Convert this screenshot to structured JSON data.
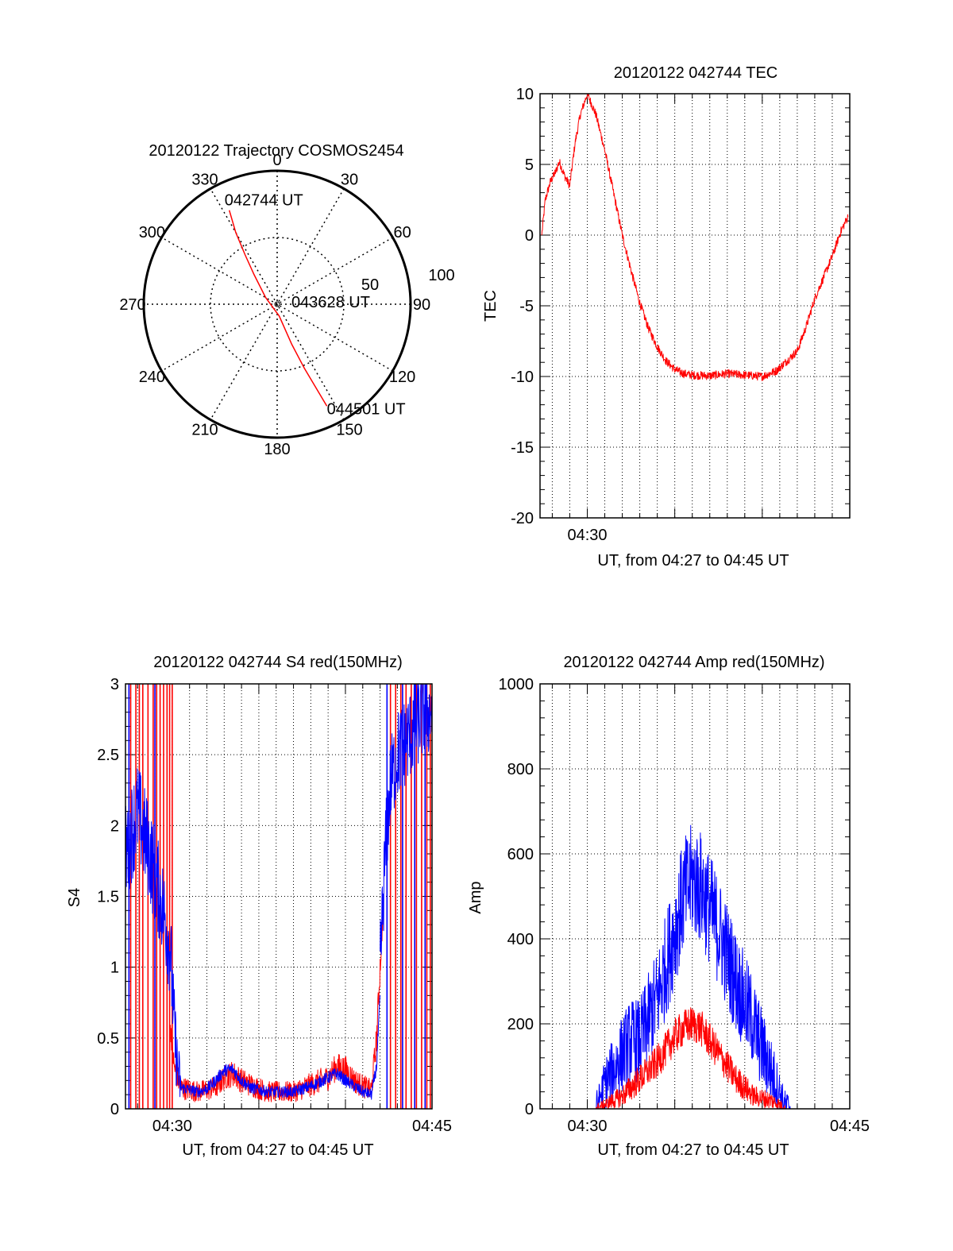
{
  "colors": {
    "red": "#ff0000",
    "blue": "#0000ff",
    "axis": "#000000",
    "grid": "#000000"
  },
  "chart_data": [
    {
      "id": "polar",
      "type": "polar-trajectory",
      "title": "20120122 Trajectory COSMOS2454",
      "azimuth_labels": [
        "0",
        "30",
        "60",
        "90",
        "120",
        "150",
        "180",
        "210",
        "240",
        "270",
        "300",
        "330"
      ],
      "radial_labels": [
        "50",
        "100"
      ],
      "track": {
        "color": "red",
        "points": [
          {
            "az": 333,
            "r": 79
          },
          {
            "az": 330,
            "r": 62
          },
          {
            "az": 327,
            "r": 44
          },
          {
            "az": 322,
            "r": 28
          },
          {
            "az": 300,
            "r": 10
          },
          {
            "az": 170,
            "r": 9
          },
          {
            "az": 160,
            "r": 32
          },
          {
            "az": 157,
            "r": 52
          },
          {
            "az": 155,
            "r": 70
          },
          {
            "az": 154,
            "r": 85
          }
        ],
        "labels": [
          {
            "text": "042744 UT",
            "az": 333,
            "r": 79
          },
          {
            "text": "043628 UT",
            "az": 0,
            "r": 0
          },
          {
            "text": "044501 UT",
            "az": 154,
            "r": 85
          }
        ]
      }
    },
    {
      "id": "tec",
      "type": "line",
      "title": "20120122 042744 TEC",
      "ylabel": "TEC",
      "xlabel": "UT, from 04:27 to 04:45 UT",
      "xlim": [
        27.3,
        45.0
      ],
      "ylim": [
        -20,
        10
      ],
      "yticks": [
        10,
        5,
        0,
        -5,
        -10,
        -15,
        -20
      ],
      "xticks": [
        {
          "value": 30,
          "label": "04:30"
        }
      ],
      "grid": true,
      "series": [
        {
          "color": "red",
          "noise": 0.3,
          "points": [
            [
              27.4,
              0
            ],
            [
              27.6,
              2.5
            ],
            [
              27.9,
              3.8
            ],
            [
              28.2,
              4.5
            ],
            [
              28.4,
              5.2
            ],
            [
              28.7,
              4.2
            ],
            [
              29.0,
              3.5
            ],
            [
              29.3,
              6.5
            ],
            [
              29.6,
              8.5
            ],
            [
              30.0,
              10
            ],
            [
              30.5,
              8.5
            ],
            [
              31.0,
              6
            ],
            [
              31.5,
              3
            ],
            [
              32.0,
              0
            ],
            [
              32.5,
              -2.5
            ],
            [
              33.0,
              -4.8
            ],
            [
              33.5,
              -6.6
            ],
            [
              34.0,
              -7.9
            ],
            [
              34.5,
              -8.9
            ],
            [
              35.0,
              -9.5
            ],
            [
              35.5,
              -9.8
            ],
            [
              36.0,
              -9.9
            ],
            [
              37.0,
              -9.95
            ],
            [
              38.0,
              -9.8
            ],
            [
              39.0,
              -9.9
            ],
            [
              40.0,
              -10
            ],
            [
              40.8,
              -9.6
            ],
            [
              41.5,
              -8.8
            ],
            [
              42.0,
              -8.2
            ],
            [
              42.5,
              -6.5
            ],
            [
              43.0,
              -4.5
            ],
            [
              43.5,
              -3
            ],
            [
              44.0,
              -1.5
            ],
            [
              44.5,
              0.3
            ],
            [
              44.9,
              1.3
            ]
          ]
        }
      ]
    },
    {
      "id": "s4",
      "type": "line",
      "title": "20120122 042744 S4 red(150MHz)",
      "ylabel": "S4",
      "xlabel": "UT, from 04:27 to 04:45 UT",
      "xlim": [
        27.3,
        45.0
      ],
      "ylim": [
        0,
        3
      ],
      "yticks": [
        0,
        0.5,
        1,
        1.5,
        2,
        2.5,
        3
      ],
      "xticks": [
        {
          "value": 30,
          "label": "04:30"
        },
        {
          "value": 45,
          "label": "04:45"
        }
      ],
      "grid": true,
      "series": [
        {
          "color": "red",
          "noise": 0.12,
          "points": [
            [
              29.9,
              0.6
            ],
            [
              30.1,
              0.3
            ],
            [
              30.5,
              0.15
            ],
            [
              31.5,
              0.12
            ],
            [
              32.5,
              0.15
            ],
            [
              33.0,
              0.22
            ],
            [
              33.5,
              0.25
            ],
            [
              34.0,
              0.2
            ],
            [
              34.5,
              0.17
            ],
            [
              35.5,
              0.12
            ],
            [
              37.0,
              0.12
            ],
            [
              38.0,
              0.17
            ],
            [
              39.0,
              0.22
            ],
            [
              39.5,
              0.3
            ],
            [
              40.0,
              0.28
            ],
            [
              40.5,
              0.2
            ],
            [
              41.0,
              0.16
            ],
            [
              41.5,
              0.13
            ],
            [
              41.8,
              0.5
            ],
            [
              42.2,
              1.5
            ]
          ]
        },
        {
          "color": "blue",
          "noise": 0.4,
          "points": [
            [
              27.3,
              1.8
            ],
            [
              28.0,
              2.1
            ],
            [
              28.7,
              1.8
            ],
            [
              29.5,
              1.4
            ],
            [
              29.9,
              1.1
            ],
            [
              30.1,
              0.6
            ],
            [
              30.3,
              0.3
            ],
            [
              30.5,
              0.15
            ]
          ]
        },
        {
          "color": "blue",
          "noise": 0.05,
          "points": [
            [
              30.5,
              0.15
            ],
            [
              31.5,
              0.12
            ],
            [
              32.0,
              0.14
            ],
            [
              32.5,
              0.2
            ],
            [
              33.0,
              0.27
            ],
            [
              33.5,
              0.28
            ],
            [
              34.0,
              0.2
            ],
            [
              34.5,
              0.15
            ],
            [
              35.5,
              0.12
            ],
            [
              37.0,
              0.12
            ],
            [
              38.0,
              0.16
            ],
            [
              39.0,
              0.22
            ],
            [
              39.5,
              0.25
            ],
            [
              40.0,
              0.2
            ],
            [
              40.5,
              0.16
            ],
            [
              41.0,
              0.12
            ],
            [
              41.5,
              0.1
            ],
            [
              41.8,
              0.3
            ],
            [
              42.0,
              0.8
            ]
          ]
        },
        {
          "color": "blue",
          "noise": 0.35,
          "points": [
            [
              42.0,
              1.0
            ],
            [
              42.3,
              1.8
            ],
            [
              42.6,
              2.3
            ],
            [
              43.0,
              2.5
            ],
            [
              43.5,
              2.6
            ],
            [
              44.0,
              2.7
            ],
            [
              44.5,
              2.8
            ],
            [
              45.0,
              2.8
            ]
          ]
        }
      ],
      "spikes": [
        {
          "color": "red",
          "top": 3,
          "x": [
            27.6,
            27.9,
            28.1,
            28.3,
            28.6,
            28.9,
            29.1,
            29.3,
            29.5,
            29.7,
            29.85,
            30.0,
            42.6,
            42.9,
            43.2,
            43.5,
            43.8,
            44.1,
            44.4,
            44.7,
            44.9
          ]
        },
        {
          "color": "blue",
          "top": 3,
          "x": [
            27.5,
            29.0,
            42.4,
            43.3,
            44.0,
            44.6
          ]
        }
      ]
    },
    {
      "id": "amp",
      "type": "line",
      "title": "20120122 042744 Amp red(150MHz)",
      "ylabel": "Amp",
      "xlabel": "UT, from 04:27 to 04:45 UT",
      "xlim": [
        27.3,
        45.0
      ],
      "ylim": [
        0,
        1000
      ],
      "yticks": [
        0,
        200,
        400,
        600,
        800,
        1000
      ],
      "xticks": [
        {
          "value": 30,
          "label": "04:30"
        },
        {
          "value": 45,
          "label": "04:45"
        }
      ],
      "grid": true,
      "series": [
        {
          "color": "blue",
          "noise": 160,
          "points": [
            [
              27.3,
              0
            ],
            [
              30.5,
              0
            ],
            [
              31.0,
              60
            ],
            [
              31.5,
              90
            ],
            [
              32.0,
              130
            ],
            [
              32.5,
              160
            ],
            [
              33.0,
              160
            ],
            [
              33.5,
              210
            ],
            [
              34.0,
              260
            ],
            [
              34.5,
              340
            ],
            [
              35.0,
              420
            ],
            [
              35.5,
              500
            ],
            [
              36.0,
              540
            ],
            [
              36.5,
              520
            ],
            [
              37.0,
              470
            ],
            [
              37.5,
              420
            ],
            [
              38.0,
              360
            ],
            [
              38.5,
              300
            ],
            [
              39.0,
              250
            ],
            [
              39.5,
              200
            ],
            [
              40.0,
              140
            ],
            [
              40.5,
              90
            ],
            [
              41.0,
              40
            ],
            [
              41.3,
              5
            ],
            [
              41.6,
              0
            ],
            [
              45.0,
              0
            ]
          ]
        },
        {
          "color": "red",
          "noise": 50,
          "points": [
            [
              27.3,
              0
            ],
            [
              30.5,
              0
            ],
            [
              31.0,
              10
            ],
            [
              31.5,
              20
            ],
            [
              32.0,
              30
            ],
            [
              32.5,
              50
            ],
            [
              33.0,
              70
            ],
            [
              33.5,
              90
            ],
            [
              34.0,
              110
            ],
            [
              34.5,
              140
            ],
            [
              35.0,
              170
            ],
            [
              35.5,
              190
            ],
            [
              36.0,
              200
            ],
            [
              36.5,
              190
            ],
            [
              37.0,
              160
            ],
            [
              37.5,
              130
            ],
            [
              38.0,
              100
            ],
            [
              38.5,
              70
            ],
            [
              39.0,
              50
            ],
            [
              39.5,
              30
            ],
            [
              40.0,
              25
            ],
            [
              40.5,
              20
            ],
            [
              41.0,
              10
            ],
            [
              41.3,
              0
            ],
            [
              45.0,
              0
            ]
          ]
        }
      ]
    }
  ]
}
